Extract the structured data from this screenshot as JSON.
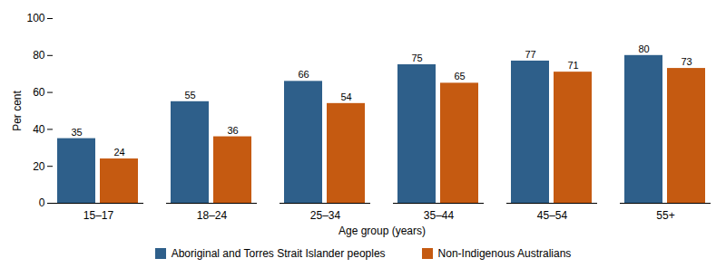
{
  "chart_data": {
    "type": "bar",
    "categories": [
      "15–17",
      "18–24",
      "25–34",
      "35–44",
      "45–54",
      "55+"
    ],
    "series": [
      {
        "name": "Aboriginal and Torres Strait Islander peoples",
        "color": "#2E5F8A",
        "values": [
          35,
          55,
          66,
          75,
          77,
          80
        ]
      },
      {
        "name": "Non-Indigenous Australians",
        "color": "#C55A11",
        "values": [
          24,
          36,
          54,
          65,
          71,
          73
        ]
      }
    ],
    "xlabel": "Age group (years)",
    "ylabel": "Per cent",
    "ylim": [
      0,
      100
    ],
    "yticks": [
      0,
      20,
      40,
      60,
      80,
      100
    ],
    "data_labels": true,
    "grid": false,
    "legend": "bottom"
  }
}
